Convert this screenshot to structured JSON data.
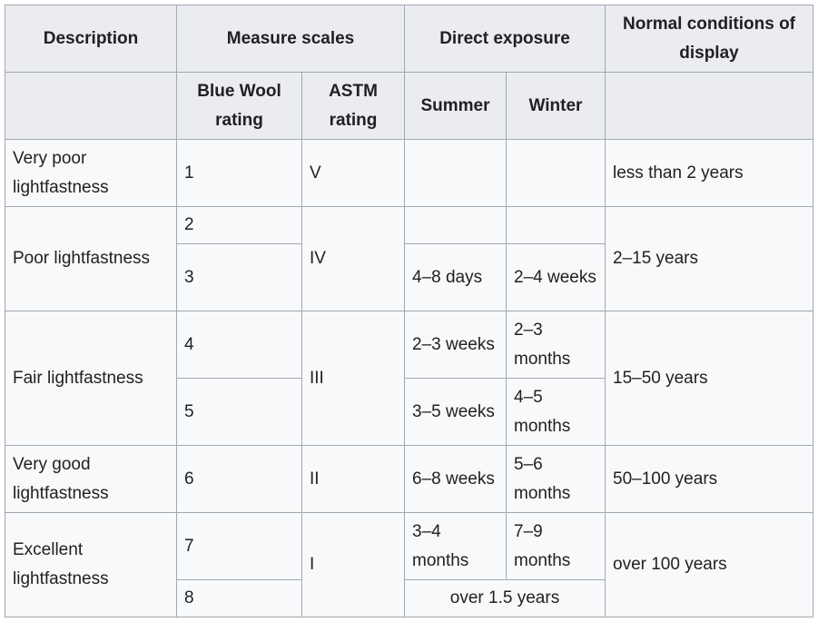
{
  "header": {
    "description": "Description",
    "measure_scales": "Measure scales",
    "direct_exposure": "Direct exposure",
    "normal_conditions": "Normal conditions of display",
    "blue_wool": "Blue Wool rating",
    "astm": "ASTM rating",
    "summer": "Summer",
    "winter": "Winter"
  },
  "rows": {
    "r1": {
      "description": "Very poor lightfastness",
      "blue_wool": "1",
      "astm": "V",
      "summer": "",
      "winter": "",
      "display": "less than 2 years"
    },
    "r2": {
      "description": "Poor lightfastness",
      "blue_wool": "2",
      "astm": "IV",
      "summer": "",
      "winter": "",
      "display": "2–15 years"
    },
    "r3": {
      "blue_wool": "3",
      "summer": "4–8 days",
      "winter": "2–4 weeks"
    },
    "r4": {
      "description": "Fair lightfastness",
      "blue_wool": "4",
      "astm": "III",
      "summer": "2–3 weeks",
      "winter": "2–3 months",
      "display": "15–50 years"
    },
    "r5": {
      "blue_wool": "5",
      "summer": "3–5 weeks",
      "winter": "4–5 months"
    },
    "r6": {
      "description": "Very good lightfastness",
      "blue_wool": "6",
      "astm": "II",
      "summer": "6–8 weeks",
      "winter": "5–6 months",
      "display": "50–100 years"
    },
    "r7": {
      "description": "Excellent lightfastness",
      "blue_wool": "7",
      "astm": "I",
      "summer": "3–4 months",
      "winter": "7–9 months",
      "display": "over 100 years"
    },
    "r8": {
      "blue_wool": "8",
      "exposure": "over 1.5 years"
    }
  }
}
